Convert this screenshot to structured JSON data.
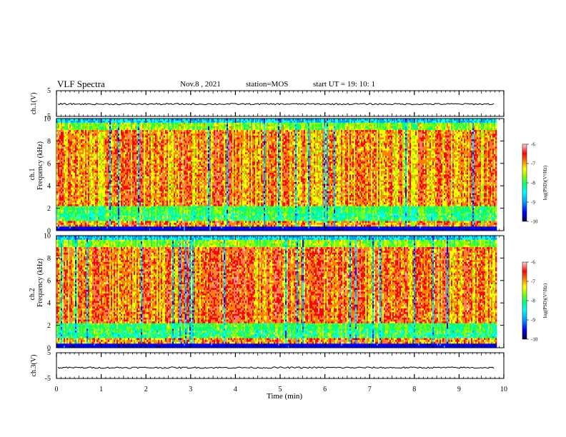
{
  "header": {
    "title": "VLF Spectra",
    "date": "Nov.8 , 2021",
    "station": "station=MOS",
    "start": "start  UT =   19: 10: 1"
  },
  "colors": {
    "colormap": [
      "#000040",
      "#0000ff",
      "#00a0ff",
      "#00ffff",
      "#00ff80",
      "#80ff00",
      "#ffff00",
      "#ff8000",
      "#ff0000",
      "#ff8080",
      "#ffd0e0"
    ],
    "line": "#000000"
  },
  "chart_data": [
    {
      "type": "line",
      "panel": "ch1-waveform",
      "ylabel": "ch.1(V)",
      "ylim": [
        -5,
        5
      ],
      "yticks": [
        "5",
        "-5"
      ],
      "xlim": [
        0,
        10
      ],
      "series": [
        {
          "values_mean": -0.2
        }
      ]
    },
    {
      "type": "heatmap",
      "panel": "ch1-spectrogram",
      "ylabel_channel": "ch.1",
      "ylabel": "Frequency (kHz)",
      "ylim": [
        0,
        10
      ],
      "yticks": [
        "0",
        "2",
        "4",
        "6",
        "8",
        "10"
      ],
      "xlim": [
        0,
        9.85
      ],
      "colorbar": {
        "label": "log(PSD)(V²/Hz)",
        "range": [
          -10,
          -6
        ],
        "ticks": [
          "-6",
          "-7",
          "-8",
          "-9",
          "-10"
        ]
      }
    },
    {
      "type": "heatmap",
      "panel": "ch2-spectrogram",
      "ylabel_channel": "ch.2",
      "ylabel": "Frequency (kHz)",
      "ylim": [
        0,
        10
      ],
      "yticks": [
        "0",
        "2",
        "4",
        "6",
        "8",
        "10"
      ],
      "xlim": [
        0,
        9.85
      ],
      "colorbar": {
        "label": "log(PSD)(V²/Hz)",
        "range": [
          -10,
          -6
        ],
        "ticks": [
          "-6",
          "-7",
          "-8",
          "-9",
          "-10"
        ]
      }
    },
    {
      "type": "line",
      "panel": "ch3-waveform",
      "ylabel": "ch.3(V)",
      "ylim": [
        -5,
        5
      ],
      "yticks": [
        "5",
        "-5"
      ],
      "xlim": [
        0,
        10
      ],
      "series": [
        {
          "values_mean": -0.8
        }
      ]
    }
  ],
  "xaxis": {
    "label": "Time (min)",
    "ticks": [
      "0",
      "1",
      "2",
      "3",
      "4",
      "5",
      "6",
      "7",
      "8",
      "9",
      "10"
    ]
  }
}
